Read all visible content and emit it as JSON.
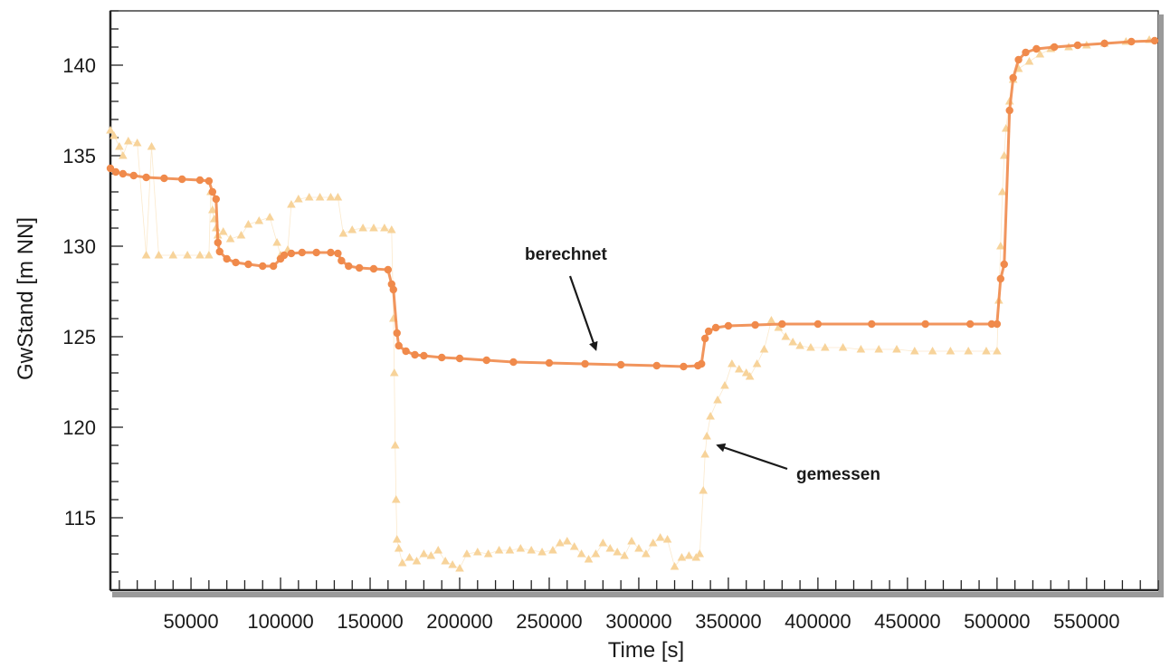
{
  "chart_data": {
    "type": "scatter",
    "xlabel": "Time [s]",
    "ylabel": "GwStand [m NN]",
    "xlim": [
      5000,
      590000
    ],
    "ylim": [
      111,
      143
    ],
    "xticks": [
      50000,
      100000,
      150000,
      200000,
      250000,
      300000,
      350000,
      400000,
      450000,
      500000,
      550000
    ],
    "yticks": [
      115,
      120,
      125,
      130,
      135,
      140
    ],
    "grid": false,
    "colors": {
      "berechnet": "#f08a4b",
      "gemessen": "#f7d39a",
      "axis": "#222222"
    },
    "series": [
      {
        "name": "berechnet",
        "marker": "circle",
        "points": [
          [
            5000,
            134.3
          ],
          [
            8000,
            134.1
          ],
          [
            12000,
            134.0
          ],
          [
            18000,
            133.9
          ],
          [
            25000,
            133.8
          ],
          [
            35000,
            133.75
          ],
          [
            45000,
            133.7
          ],
          [
            55000,
            133.65
          ],
          [
            60000,
            133.6
          ],
          [
            62000,
            133.0
          ],
          [
            64000,
            132.6
          ],
          [
            65000,
            130.2
          ],
          [
            66000,
            129.7
          ],
          [
            70000,
            129.3
          ],
          [
            75000,
            129.1
          ],
          [
            82000,
            129.0
          ],
          [
            90000,
            128.9
          ],
          [
            96000,
            128.9
          ],
          [
            100000,
            129.3
          ],
          [
            102000,
            129.5
          ],
          [
            106000,
            129.6
          ],
          [
            112000,
            129.65
          ],
          [
            120000,
            129.65
          ],
          [
            128000,
            129.65
          ],
          [
            132000,
            129.6
          ],
          [
            134000,
            129.2
          ],
          [
            138000,
            128.9
          ],
          [
            144000,
            128.8
          ],
          [
            152000,
            128.75
          ],
          [
            160000,
            128.7
          ],
          [
            162000,
            127.9
          ],
          [
            163000,
            127.6
          ],
          [
            165000,
            125.2
          ],
          [
            166000,
            124.5
          ],
          [
            170000,
            124.2
          ],
          [
            175000,
            124.0
          ],
          [
            180000,
            123.95
          ],
          [
            190000,
            123.85
          ],
          [
            200000,
            123.8
          ],
          [
            215000,
            123.7
          ],
          [
            230000,
            123.6
          ],
          [
            250000,
            123.55
          ],
          [
            270000,
            123.5
          ],
          [
            290000,
            123.45
          ],
          [
            310000,
            123.4
          ],
          [
            325000,
            123.35
          ],
          [
            333000,
            123.4
          ],
          [
            335000,
            123.5
          ],
          [
            337000,
            124.9
          ],
          [
            339000,
            125.3
          ],
          [
            343000,
            125.5
          ],
          [
            350000,
            125.6
          ],
          [
            365000,
            125.65
          ],
          [
            380000,
            125.7
          ],
          [
            400000,
            125.7
          ],
          [
            430000,
            125.7
          ],
          [
            460000,
            125.7
          ],
          [
            485000,
            125.7
          ],
          [
            497000,
            125.7
          ],
          [
            500000,
            125.7
          ],
          [
            502000,
            128.2
          ],
          [
            504000,
            129.0
          ],
          [
            507000,
            137.5
          ],
          [
            509000,
            139.3
          ],
          [
            512000,
            140.3
          ],
          [
            516000,
            140.7
          ],
          [
            522000,
            140.9
          ],
          [
            532000,
            141.0
          ],
          [
            545000,
            141.1
          ],
          [
            560000,
            141.2
          ],
          [
            575000,
            141.3
          ],
          [
            588000,
            141.35
          ]
        ]
      },
      {
        "name": "gemessen",
        "marker": "triangle",
        "points": [
          [
            5000,
            136.4
          ],
          [
            7000,
            136.1
          ],
          [
            10000,
            135.5
          ],
          [
            12000,
            135.0
          ],
          [
            15000,
            135.8
          ],
          [
            20000,
            135.7
          ],
          [
            28000,
            135.5
          ],
          [
            25000,
            129.5
          ],
          [
            32000,
            129.5
          ],
          [
            40000,
            129.5
          ],
          [
            48000,
            129.5
          ],
          [
            55000,
            129.5
          ],
          [
            60000,
            129.5
          ],
          [
            61000,
            133.0
          ],
          [
            62000,
            132.0
          ],
          [
            63000,
            131.5
          ],
          [
            64000,
            131.0
          ],
          [
            65000,
            130.6
          ],
          [
            68000,
            130.8
          ],
          [
            72000,
            130.4
          ],
          [
            78000,
            130.6
          ],
          [
            82000,
            131.2
          ],
          [
            88000,
            131.4
          ],
          [
            94000,
            131.6
          ],
          [
            98000,
            130.2
          ],
          [
            100000,
            129.5
          ],
          [
            104000,
            129.8
          ],
          [
            106000,
            132.3
          ],
          [
            110000,
            132.6
          ],
          [
            116000,
            132.7
          ],
          [
            122000,
            132.7
          ],
          [
            128000,
            132.7
          ],
          [
            132000,
            132.7
          ],
          [
            135000,
            130.7
          ],
          [
            140000,
            130.9
          ],
          [
            146000,
            131.0
          ],
          [
            152000,
            131.0
          ],
          [
            158000,
            131.0
          ],
          [
            162000,
            130.9
          ],
          [
            163000,
            126.0
          ],
          [
            163500,
            123.0
          ],
          [
            164000,
            119.0
          ],
          [
            164500,
            116.0
          ],
          [
            165000,
            113.8
          ],
          [
            166000,
            113.3
          ],
          [
            168000,
            112.5
          ],
          [
            172000,
            112.8
          ],
          [
            176000,
            112.6
          ],
          [
            180000,
            113.0
          ],
          [
            184000,
            112.9
          ],
          [
            188000,
            113.2
          ],
          [
            192000,
            112.6
          ],
          [
            196000,
            112.4
          ],
          [
            200000,
            112.2
          ],
          [
            204000,
            113.0
          ],
          [
            210000,
            113.1
          ],
          [
            216000,
            113.0
          ],
          [
            222000,
            113.2
          ],
          [
            228000,
            113.2
          ],
          [
            234000,
            113.3
          ],
          [
            240000,
            113.2
          ],
          [
            246000,
            113.1
          ],
          [
            252000,
            113.2
          ],
          [
            256000,
            113.6
          ],
          [
            260000,
            113.7
          ],
          [
            264000,
            113.4
          ],
          [
            268000,
            113.0
          ],
          [
            272000,
            112.7
          ],
          [
            276000,
            113.0
          ],
          [
            280000,
            113.6
          ],
          [
            284000,
            113.3
          ],
          [
            288000,
            113.1
          ],
          [
            292000,
            112.9
          ],
          [
            296000,
            113.7
          ],
          [
            300000,
            113.3
          ],
          [
            304000,
            113.0
          ],
          [
            308000,
            113.6
          ],
          [
            312000,
            113.9
          ],
          [
            316000,
            113.8
          ],
          [
            320000,
            112.3
          ],
          [
            324000,
            112.8
          ],
          [
            328000,
            112.9
          ],
          [
            332000,
            112.8
          ],
          [
            334000,
            113.0
          ],
          [
            336000,
            116.5
          ],
          [
            337000,
            118.5
          ],
          [
            338000,
            119.5
          ],
          [
            340000,
            120.6
          ],
          [
            344000,
            121.5
          ],
          [
            348000,
            122.3
          ],
          [
            352000,
            123.5
          ],
          [
            356000,
            123.2
          ],
          [
            360000,
            123.0
          ],
          [
            362000,
            122.8
          ],
          [
            366000,
            123.5
          ],
          [
            370000,
            124.3
          ],
          [
            374000,
            125.9
          ],
          [
            378000,
            125.5
          ],
          [
            382000,
            125.0
          ],
          [
            386000,
            124.7
          ],
          [
            390000,
            124.5
          ],
          [
            396000,
            124.4
          ],
          [
            404000,
            124.4
          ],
          [
            414000,
            124.4
          ],
          [
            424000,
            124.3
          ],
          [
            434000,
            124.3
          ],
          [
            444000,
            124.3
          ],
          [
            454000,
            124.2
          ],
          [
            464000,
            124.2
          ],
          [
            474000,
            124.2
          ],
          [
            484000,
            124.2
          ],
          [
            494000,
            124.2
          ],
          [
            500000,
            124.2
          ],
          [
            501000,
            127.0
          ],
          [
            502000,
            130.0
          ],
          [
            503000,
            133.0
          ],
          [
            504000,
            135.0
          ],
          [
            505000,
            136.5
          ],
          [
            507000,
            138.0
          ],
          [
            509000,
            139.2
          ],
          [
            512000,
            139.8
          ],
          [
            518000,
            140.2
          ],
          [
            524000,
            140.6
          ],
          [
            530000,
            140.9
          ],
          [
            540000,
            141.0
          ],
          [
            550000,
            141.1
          ],
          [
            560000,
            141.2
          ],
          [
            572000,
            141.3
          ],
          [
            585000,
            141.4
          ]
        ]
      }
    ],
    "annotations": [
      {
        "text": "berechnet",
        "target": [
          276000,
          123.9
        ]
      },
      {
        "text": "gemessen",
        "target": [
          340000,
          119.0
        ]
      }
    ]
  }
}
